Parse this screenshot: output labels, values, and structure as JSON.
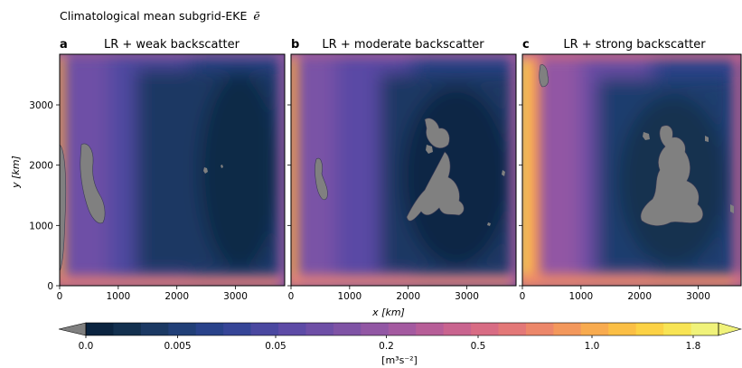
{
  "figure": {
    "title": "Climatological mean subgrid-EKE",
    "title_symbol": "ē"
  },
  "chart_data": [
    {
      "type": "heatmap",
      "panel_letter": "a",
      "title": "LR + weak backscatter",
      "xlabel": "x [km]",
      "ylabel": "y [km]",
      "xlim": [
        0,
        3840
      ],
      "ylim": [
        0,
        3840
      ],
      "x_ticks": [
        0,
        1000,
        2000,
        3000
      ],
      "y_ticks": [
        0,
        1000,
        2000,
        3000
      ],
      "masked_regions": [
        {
          "label": "below 0",
          "x": [
            0,
            120
          ],
          "y": [
            500,
            2300
          ]
        },
        {
          "label": "below 0",
          "x": [
            380,
            830
          ],
          "y": [
            1000,
            2400
          ]
        }
      ]
    },
    {
      "type": "heatmap",
      "panel_letter": "b",
      "title": "LR + moderate backscatter",
      "xlabel": "x [km]",
      "xlim": [
        0,
        3840
      ],
      "ylim": [
        0,
        3840
      ],
      "x_ticks": [
        0,
        1000,
        2000,
        3000
      ],
      "y_ticks": [
        0,
        1000,
        2000,
        3000
      ],
      "masked_regions": [
        {
          "label": "below 0",
          "x": [
            350,
            700
          ],
          "y": [
            1600,
            2200
          ]
        },
        {
          "label": "below 0",
          "x": [
            1950,
            2900
          ],
          "y": [
            1050,
            2800
          ]
        }
      ]
    },
    {
      "type": "heatmap",
      "panel_letter": "c",
      "title": "LR + strong backscatter",
      "xlabel": "x [km]",
      "xlim": [
        0,
        3840
      ],
      "ylim": [
        0,
        3840
      ],
      "x_ticks": [
        0,
        1000,
        2000,
        3000
      ],
      "y_ticks": [
        0,
        1000,
        2000,
        3000
      ],
      "masked_regions": [
        {
          "label": "below 0",
          "x": [
            400,
            600
          ],
          "y": [
            3350,
            3700
          ]
        },
        {
          "label": "below 0",
          "x": [
            2050,
            3450
          ],
          "y": [
            1000,
            2700
          ]
        }
      ]
    }
  ],
  "colorbar": {
    "label": "[m³s⁻²]",
    "ticks": [
      "0.0",
      "0.005",
      "0.05",
      "0.2",
      "0.5",
      "1.0",
      "1.8"
    ],
    "tick_values": [
      0.0,
      0.005,
      0.05,
      0.2,
      0.5,
      1.0,
      1.8
    ],
    "under_color": "#808080",
    "over_color": "#f0f27a",
    "colors": [
      "#0b2440",
      "#13304f",
      "#1b3963",
      "#213f77",
      "#29428a",
      "#364597",
      "#4a48a0",
      "#5d4ba6",
      "#6e4fa6",
      "#7f53a5",
      "#9257a4",
      "#a45aa0",
      "#b75e98",
      "#c9648f",
      "#d86c84",
      "#e37878",
      "#ec876a",
      "#f3985c",
      "#f8ab4f",
      "#fbbf45",
      "#fcd245",
      "#f8e454",
      "#f0f27a"
    ]
  }
}
